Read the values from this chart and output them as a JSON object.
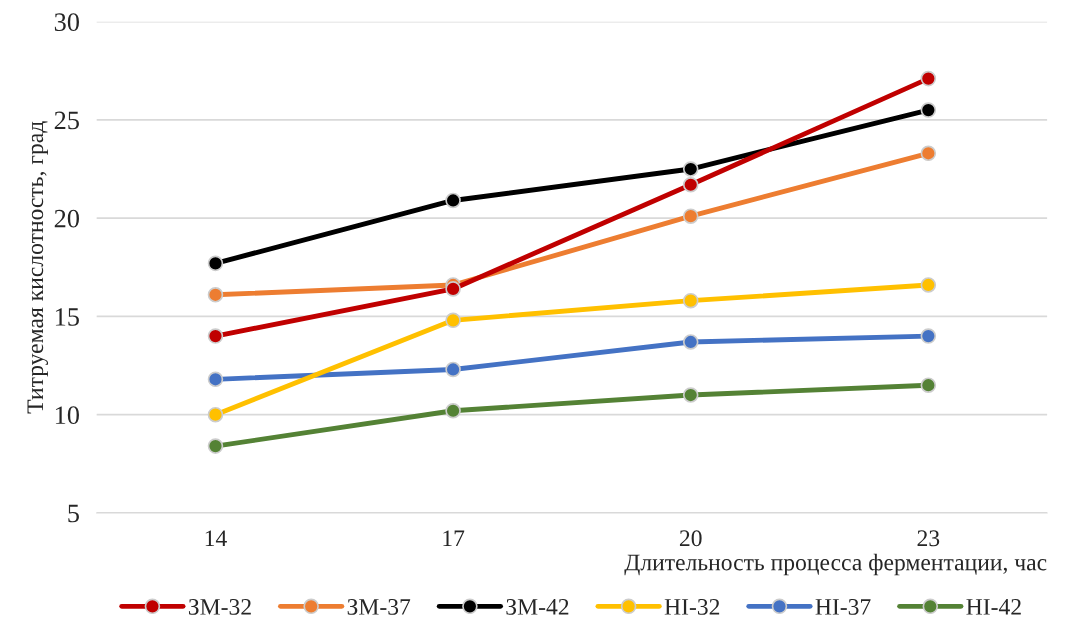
{
  "chart_data": {
    "type": "line",
    "xlabel": "Длительность процесса ферментации, час",
    "ylabel": "Титруемая кислотность, град",
    "categories": [
      "14",
      "17",
      "20",
      "23"
    ],
    "series": [
      {
        "name": "ЗМ-32",
        "color": "#c00000",
        "values": [
          14.0,
          16.4,
          21.7,
          27.1
        ]
      },
      {
        "name": "ЗМ-37",
        "color": "#ed7d31",
        "values": [
          16.1,
          16.6,
          20.1,
          23.3
        ]
      },
      {
        "name": "ЗМ-42",
        "color": "#000000",
        "values": [
          17.7,
          20.9,
          22.5,
          25.5
        ]
      },
      {
        "name": "НІ-32",
        "color": "#ffc000",
        "values": [
          10.0,
          14.8,
          15.8,
          16.6
        ]
      },
      {
        "name": "НІ-37",
        "color": "#4472c4",
        "values": [
          11.8,
          12.3,
          13.7,
          14.0
        ]
      },
      {
        "name": "НІ-42",
        "color": "#548235",
        "values": [
          8.4,
          10.2,
          11.0,
          11.5
        ]
      }
    ],
    "ylim": [
      5,
      30
    ],
    "yticks": [
      5,
      10,
      15,
      20,
      25,
      30
    ],
    "grid": "y",
    "legend": "bottom",
    "marker": "circle",
    "line_style": "solid"
  }
}
